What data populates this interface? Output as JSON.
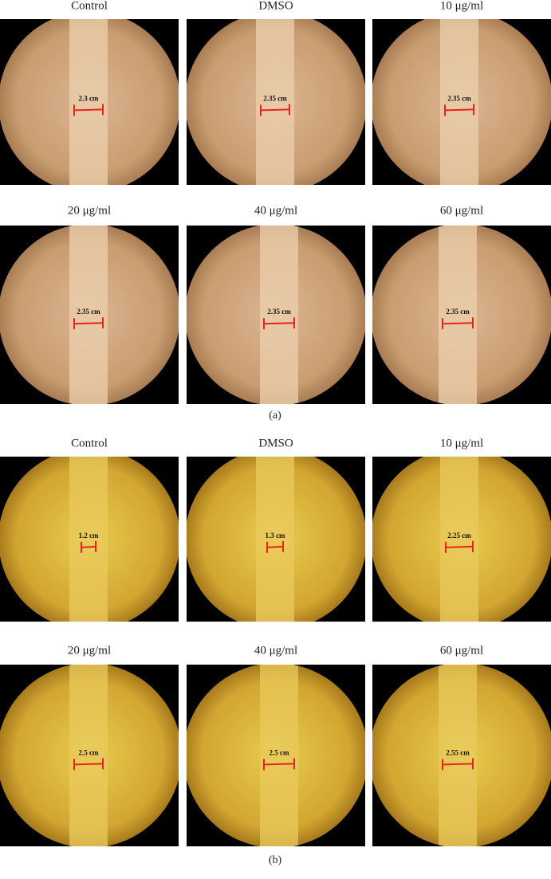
{
  "panels": [
    {
      "label": "(a)",
      "images": [
        {
          "title": "Control",
          "measurement": "2.3 cm"
        },
        {
          "title": "DMSO",
          "measurement": "2.35 cm"
        },
        {
          "title": "10 μg/ml",
          "measurement": "2.35 cm"
        },
        {
          "title": "20 μg/ml",
          "measurement": "2.35 cm"
        },
        {
          "title": "40 μg/ml",
          "measurement": "2.35 cm"
        },
        {
          "title": "60 μg/ml",
          "measurement": "2.35 cm"
        }
      ]
    },
    {
      "label": "(b)",
      "images": [
        {
          "title": "Control",
          "measurement": "1.2 cm"
        },
        {
          "title": "DMSO",
          "measurement": "1.3 cm"
        },
        {
          "title": "10 μg/ml",
          "measurement": "2.25 cm"
        },
        {
          "title": "20 μg/ml",
          "measurement": "2.5 cm"
        },
        {
          "title": "40 μg/ml",
          "measurement": "2.5 cm"
        },
        {
          "title": "60 μg/ml",
          "measurement": "2.55 cm"
        }
      ]
    }
  ]
}
